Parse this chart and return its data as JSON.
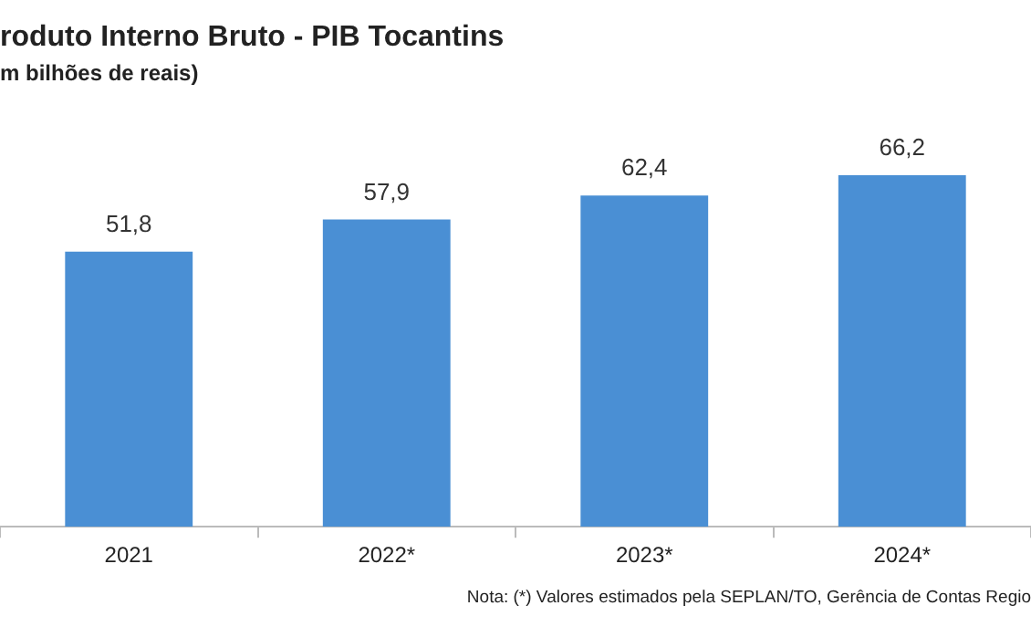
{
  "chart_data": {
    "type": "bar",
    "title": "roduto Interno  Bruto - PIB Tocantins",
    "subtitle": "m bilhões de reais)",
    "categories": [
      "2021",
      "2022*",
      "2023*",
      "2024*"
    ],
    "values": [
      51.8,
      57.9,
      62.4,
      66.2
    ],
    "value_labels": [
      "51,8",
      "57,9",
      "62,4",
      "66,2"
    ],
    "color": "#4a8fd4",
    "grid": false,
    "legend": false,
    "annotations": [
      "Nota: (*) Valores estimados pela SEPLAN/TO, Gerência de Contas Regio"
    ]
  }
}
